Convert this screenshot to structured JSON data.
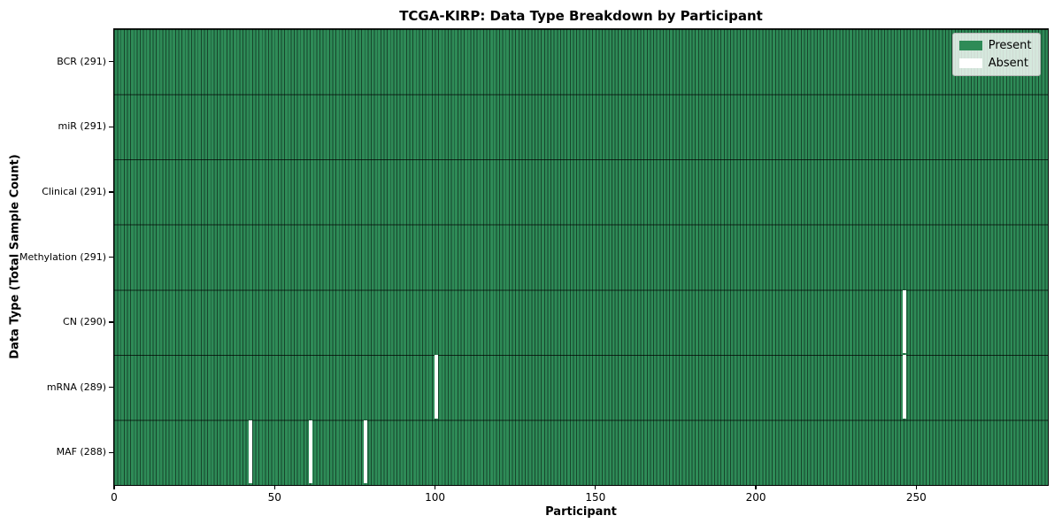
{
  "chart_data": {
    "type": "heatmap",
    "title": "TCGA-KIRP: Data Type Breakdown by Participant",
    "xlabel": "Participant",
    "ylabel": "Data Type (Total Sample Count)",
    "x_ticks": [
      0,
      50,
      100,
      150,
      200,
      250
    ],
    "x_range": [
      0,
      291
    ],
    "n_participants": 291,
    "grid": false,
    "legend_position": "upper right",
    "legend": [
      {
        "label": "Present",
        "color": "#2e8b57"
      },
      {
        "label": "Absent",
        "color": "#ffffff"
      }
    ],
    "colors": {
      "present_fill": "#2e8b57",
      "bar_edge": "#17462c",
      "absent_fill": "#ffffff",
      "row_line": "#000000"
    },
    "rows": [
      {
        "label": "BCR (291)",
        "data_type": "BCR",
        "total": 291,
        "absent_participants": []
      },
      {
        "label": "miR (291)",
        "data_type": "miR",
        "total": 291,
        "absent_participants": []
      },
      {
        "label": "Clinical (291)",
        "data_type": "Clinical",
        "total": 291,
        "absent_participants": []
      },
      {
        "label": "Methylation (291)",
        "data_type": "Methylation",
        "total": 291,
        "absent_participants": []
      },
      {
        "label": "CN (290)",
        "data_type": "CN",
        "total": 290,
        "absent_participants": [
          246
        ]
      },
      {
        "label": "mRNA (289)",
        "data_type": "mRNA",
        "total": 289,
        "absent_participants": [
          100,
          246
        ]
      },
      {
        "label": "MAF (288)",
        "data_type": "MAF",
        "total": 288,
        "absent_participants": [
          42,
          61,
          78
        ]
      }
    ]
  }
}
